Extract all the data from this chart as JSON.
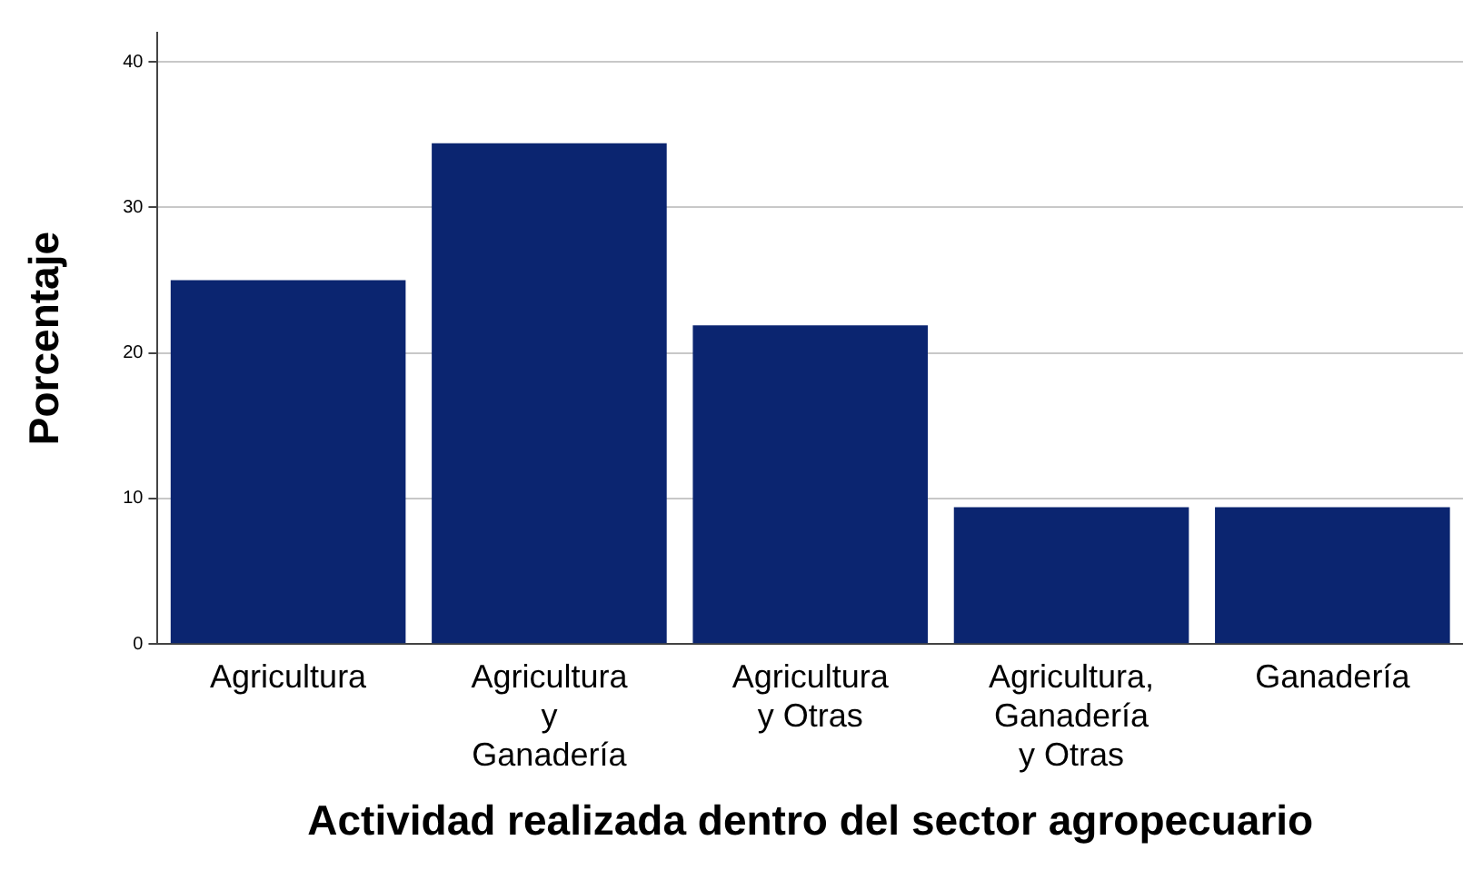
{
  "chart_data": {
    "type": "bar",
    "xlabel": "Actividad realizada dentro del sector agropecuario",
    "ylabel": "Porcentaje",
    "categories": [
      "Agricultura",
      "Agricultura\ny\nGanadería",
      "Agricultura\ny Otras",
      "Agricultura,\nGanadería\ny Otras",
      "Ganadería"
    ],
    "values": [
      25.0,
      34.4,
      21.9,
      9.4,
      9.4
    ],
    "color": "#0b2570",
    "ylim": [
      0,
      42
    ],
    "yticks": [
      0,
      10,
      20,
      30,
      40
    ],
    "grid": "y",
    "legend": false
  }
}
